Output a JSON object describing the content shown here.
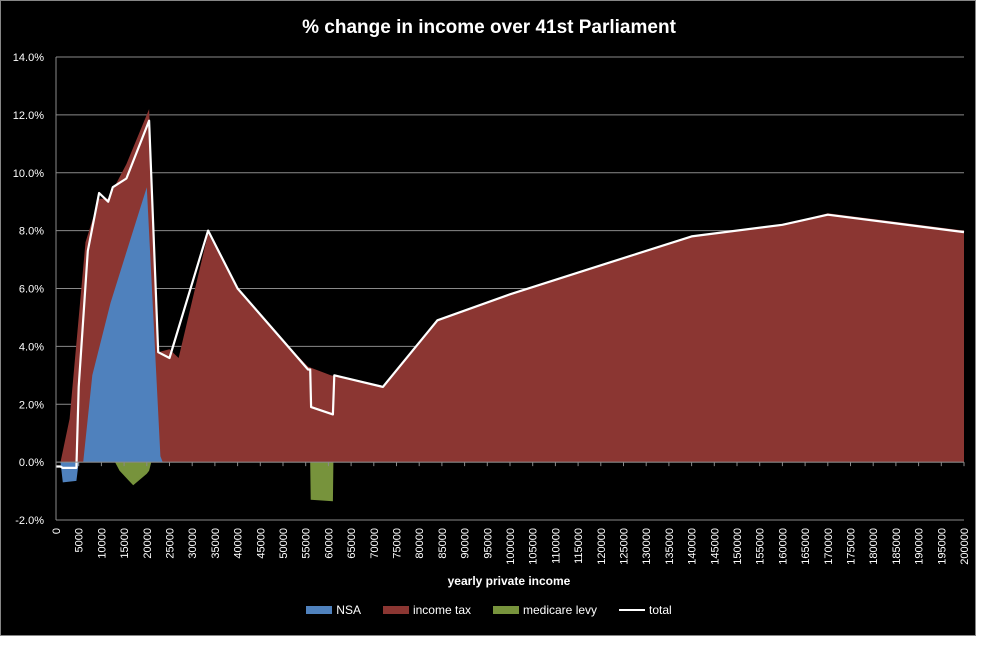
{
  "chart_data": {
    "type": "area",
    "title": "% change in income over 41st Parliament",
    "xlabel": "yearly private income",
    "ylabel": "",
    "xlim": [
      0,
      200000
    ],
    "ylim": [
      -2.0,
      14.0
    ],
    "x_ticks": [
      0,
      5000,
      10000,
      15000,
      20000,
      25000,
      30000,
      35000,
      40000,
      45000,
      50000,
      55000,
      60000,
      65000,
      70000,
      75000,
      80000,
      85000,
      90000,
      95000,
      100000,
      105000,
      110000,
      115000,
      120000,
      125000,
      130000,
      135000,
      140000,
      145000,
      150000,
      155000,
      160000,
      165000,
      170000,
      175000,
      180000,
      185000,
      190000,
      195000,
      200000
    ],
    "y_ticks": [
      "-2.0%",
      "0.0%",
      "2.0%",
      "4.0%",
      "6.0%",
      "8.0%",
      "10.0%",
      "12.0%",
      "14.0%"
    ],
    "legend_position": "bottom",
    "grid": "horizontal",
    "series": [
      {
        "name": "NSA",
        "color": "#4f81bd",
        "points": [
          [
            0,
            0
          ],
          [
            1000,
            0
          ],
          [
            1500,
            -0.7
          ],
          [
            4500,
            -0.65
          ],
          [
            5000,
            0
          ],
          [
            6000,
            0
          ],
          [
            8000,
            3.0
          ],
          [
            12000,
            5.5
          ],
          [
            16000,
            7.5
          ],
          [
            20000,
            9.5
          ],
          [
            23000,
            0.2
          ],
          [
            23500,
            0
          ],
          [
            200000,
            0
          ]
        ]
      },
      {
        "name": "income tax",
        "color": "#8b3632",
        "points": [
          [
            0,
            0
          ],
          [
            1000,
            0
          ],
          [
            3000,
            1.5
          ],
          [
            6500,
            7.6
          ],
          [
            9500,
            9.1
          ],
          [
            11500,
            9.1
          ],
          [
            15500,
            10.3
          ],
          [
            20500,
            12.2
          ],
          [
            22500,
            3.8
          ],
          [
            25000,
            3.9
          ],
          [
            27000,
            3.6
          ],
          [
            33500,
            7.9
          ],
          [
            40000,
            6.0
          ],
          [
            50000,
            4.2
          ],
          [
            55500,
            3.3
          ],
          [
            60500,
            3.0
          ],
          [
            72000,
            2.6
          ],
          [
            84000,
            4.9
          ],
          [
            100000,
            5.8
          ],
          [
            120000,
            6.8
          ],
          [
            140000,
            7.8
          ],
          [
            160000,
            8.2
          ],
          [
            170000,
            8.6
          ],
          [
            185000,
            8.3
          ],
          [
            200000,
            8.0
          ]
        ]
      },
      {
        "name": "medicare levy",
        "color": "#77933c",
        "points": [
          [
            13000,
            0
          ],
          [
            14000,
            -0.3
          ],
          [
            17000,
            -0.8
          ],
          [
            20000,
            -0.4
          ],
          [
            20500,
            -0.3
          ],
          [
            21000,
            0
          ],
          [
            56000,
            0
          ],
          [
            56100,
            -1.3
          ],
          [
            61000,
            -1.35
          ],
          [
            61100,
            0
          ]
        ]
      },
      {
        "name": "total",
        "color": "#ffffff",
        "points": [
          [
            0,
            -0.15
          ],
          [
            1000,
            -0.15
          ],
          [
            1500,
            -0.2
          ],
          [
            4500,
            -0.2
          ],
          [
            5000,
            2.6
          ],
          [
            7000,
            7.3
          ],
          [
            9500,
            9.3
          ],
          [
            11500,
            9.0
          ],
          [
            12500,
            9.5
          ],
          [
            15500,
            9.8
          ],
          [
            20500,
            11.8
          ],
          [
            22500,
            3.8
          ],
          [
            25000,
            3.6
          ],
          [
            33500,
            8.0
          ],
          [
            40000,
            6.0
          ],
          [
            50000,
            4.2
          ],
          [
            55500,
            3.2
          ],
          [
            56000,
            3.2
          ],
          [
            56200,
            1.9
          ],
          [
            61000,
            1.65
          ],
          [
            61300,
            3.0
          ],
          [
            72000,
            2.6
          ],
          [
            84000,
            4.9
          ],
          [
            100000,
            5.8
          ],
          [
            120000,
            6.8
          ],
          [
            140000,
            7.8
          ],
          [
            160000,
            8.2
          ],
          [
            170000,
            8.55
          ],
          [
            185000,
            8.25
          ],
          [
            200000,
            7.95
          ]
        ]
      }
    ]
  }
}
